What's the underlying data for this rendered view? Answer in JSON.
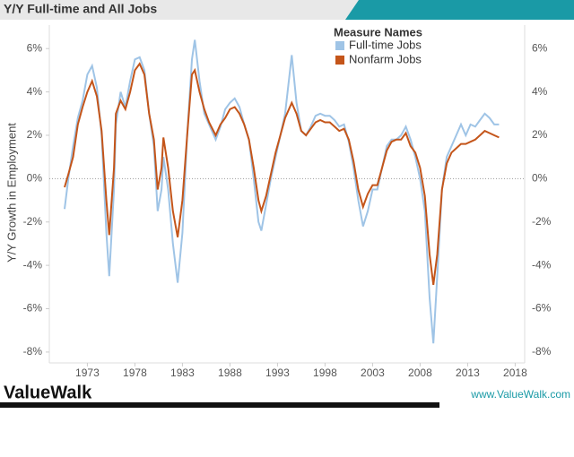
{
  "chart_data": {
    "type": "line",
    "title": "Y/Y Full-time and All Jobs",
    "y_axis_label": "Y/Y Growth in Employment",
    "legend_title": "Measure Names",
    "brand": "ValueWalk",
    "website": "www.ValueWalk.com",
    "xlim": [
      1969,
      2019
    ],
    "xticks": [
      1973,
      1978,
      1983,
      1988,
      1993,
      1998,
      2003,
      2008,
      2013,
      2018
    ],
    "ylim": [
      -8.5,
      7
    ],
    "yticks": [
      {
        "value": 6,
        "label": "6%"
      },
      {
        "value": 4,
        "label": "4%"
      },
      {
        "value": 2,
        "label": "2%"
      },
      {
        "value": 0,
        "label": "0%"
      },
      {
        "value": -2,
        "label": "-2%"
      },
      {
        "value": -4,
        "label": "-4%"
      },
      {
        "value": -6,
        "label": "-6%"
      },
      {
        "value": -8,
        "label": "-8%"
      }
    ],
    "x": [
      1970.6,
      1971,
      1971.5,
      1972,
      1972.5,
      1973,
      1973.5,
      1974,
      1974.5,
      1975,
      1975.3,
      1975.8,
      1976,
      1976.5,
      1977,
      1977.5,
      1978,
      1978.5,
      1979,
      1979.5,
      1980,
      1980.4,
      1980.8,
      1981,
      1981.5,
      1982,
      1982.5,
      1983,
      1983.5,
      1984,
      1984.3,
      1984.8,
      1985.3,
      1985.8,
      1986.5,
      1987,
      1987.5,
      1988,
      1988.5,
      1989,
      1989.5,
      1990,
      1990.5,
      1991,
      1991.3,
      1991.8,
      1992.3,
      1992.8,
      1993.3,
      1993.8,
      1994.5,
      1995,
      1995.5,
      1996,
      1996.5,
      1997,
      1997.5,
      1998,
      1998.5,
      1999,
      1999.5,
      2000,
      2000.5,
      2001,
      2001.5,
      2002,
      2002.5,
      2003,
      2003.5,
      2004,
      2004.5,
      2005,
      2005.5,
      2006,
      2006.5,
      2007,
      2007.5,
      2008,
      2008.5,
      2009,
      2009.4,
      2009.8,
      2010.3,
      2010.8,
      2011.3,
      2011.8,
      2012.3,
      2012.8,
      2013.3,
      2013.8,
      2014.3,
      2014.8,
      2015.3,
      2015.8,
      2016.3
    ],
    "series": [
      {
        "name": "Full-time Jobs",
        "color": "#9fc4e6",
        "values": [
          -1.4,
          0.0,
          1.5,
          2.8,
          3.6,
          4.8,
          5.2,
          4.2,
          2.0,
          -2.5,
          -4.5,
          -0.5,
          2.5,
          4.0,
          3.3,
          4.5,
          5.5,
          5.6,
          5.0,
          3.0,
          1.5,
          -1.5,
          -0.5,
          1.0,
          -0.5,
          -3.0,
          -4.8,
          -2.5,
          2.0,
          5.5,
          6.4,
          4.5,
          3.0,
          2.5,
          1.8,
          2.4,
          3.2,
          3.5,
          3.7,
          3.3,
          2.5,
          1.8,
          0.0,
          -2.0,
          -2.4,
          -1.2,
          0.0,
          1.0,
          2.0,
          3.0,
          5.7,
          3.5,
          2.2,
          2.0,
          2.4,
          2.9,
          3.0,
          2.9,
          2.9,
          2.7,
          2.4,
          2.5,
          1.7,
          0.5,
          -1.0,
          -2.2,
          -1.5,
          -0.5,
          -0.5,
          0.5,
          1.5,
          1.8,
          1.8,
          2.0,
          2.4,
          1.8,
          1.0,
          0.0,
          -1.5,
          -5.5,
          -7.6,
          -4.5,
          -0.5,
          1.0,
          1.5,
          2.0,
          2.5,
          2.0,
          2.5,
          2.4,
          2.7,
          3.0,
          2.8,
          2.5,
          2.5
        ]
      },
      {
        "name": "Nonfarm Jobs",
        "color": "#c4551a",
        "values": [
          -0.4,
          0.2,
          1.0,
          2.5,
          3.3,
          4.0,
          4.5,
          3.8,
          2.2,
          -1.0,
          -2.6,
          0.5,
          3.0,
          3.6,
          3.2,
          4.0,
          5.0,
          5.3,
          4.8,
          3.0,
          1.8,
          -0.5,
          0.5,
          1.9,
          0.5,
          -1.5,
          -2.7,
          -1.0,
          2.0,
          4.8,
          5.0,
          4.0,
          3.2,
          2.6,
          2.0,
          2.5,
          2.8,
          3.2,
          3.3,
          3.0,
          2.5,
          1.8,
          0.5,
          -1.0,
          -1.5,
          -0.8,
          0.2,
          1.2,
          2.0,
          2.8,
          3.5,
          3.0,
          2.2,
          2.0,
          2.3,
          2.6,
          2.7,
          2.6,
          2.6,
          2.4,
          2.2,
          2.3,
          1.8,
          0.8,
          -0.5,
          -1.3,
          -0.7,
          -0.3,
          -0.3,
          0.5,
          1.3,
          1.7,
          1.8,
          1.8,
          2.1,
          1.5,
          1.2,
          0.5,
          -0.8,
          -3.5,
          -4.9,
          -3.5,
          -0.5,
          0.7,
          1.2,
          1.4,
          1.6,
          1.6,
          1.7,
          1.8,
          2.0,
          2.2,
          2.1,
          2.0,
          1.9
        ]
      }
    ]
  }
}
